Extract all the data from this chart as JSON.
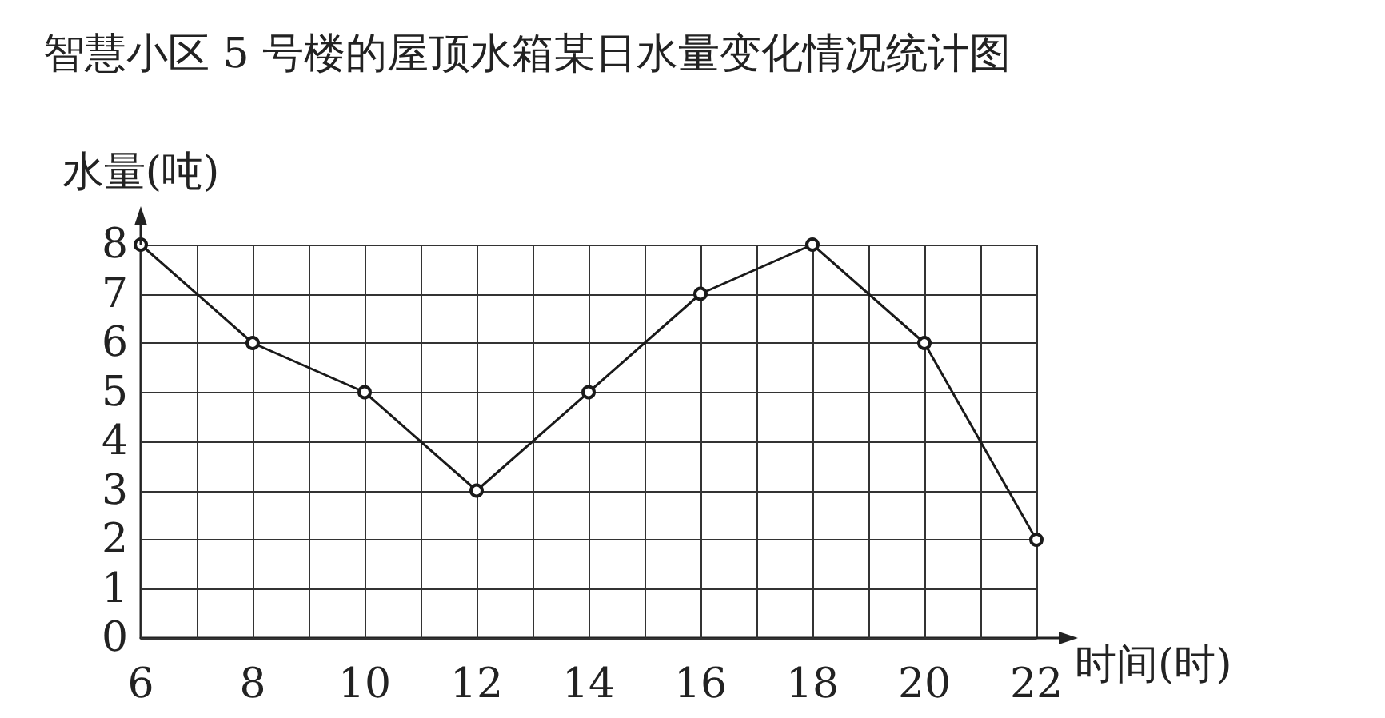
{
  "chart_data": {
    "type": "line",
    "title": "智慧小区 5 号楼的屋顶水箱某日水量变化情况统计图",
    "xlabel": "时间(时)",
    "ylabel": "水量(吨)",
    "x": [
      6,
      8,
      10,
      12,
      14,
      16,
      18,
      20,
      22
    ],
    "series": [
      {
        "color": "#1a1a1a",
        "values": [
          8,
          6,
          5,
          3,
          5,
          7,
          8,
          6,
          2
        ]
      }
    ],
    "xlim": [
      6,
      22
    ],
    "xticks": [
      6,
      {
        "value": 7,
        "label": null
      },
      8,
      {
        "value": 9,
        "label": null
      },
      10,
      {
        "value": 11,
        "label": null
      },
      12,
      {
        "value": 13,
        "label": null
      },
      14,
      {
        "value": 15,
        "label": null
      },
      16,
      {
        "value": 17,
        "label": null
      },
      18,
      {
        "value": 19,
        "label": null
      },
      20,
      {
        "value": 21,
        "label": null
      },
      22
    ],
    "ylim": [
      0,
      8
    ],
    "yticks": [
      0,
      1,
      2,
      3,
      4,
      5,
      6,
      7,
      8
    ],
    "grid": true,
    "marker": "circle",
    "line_style": "solid"
  }
}
